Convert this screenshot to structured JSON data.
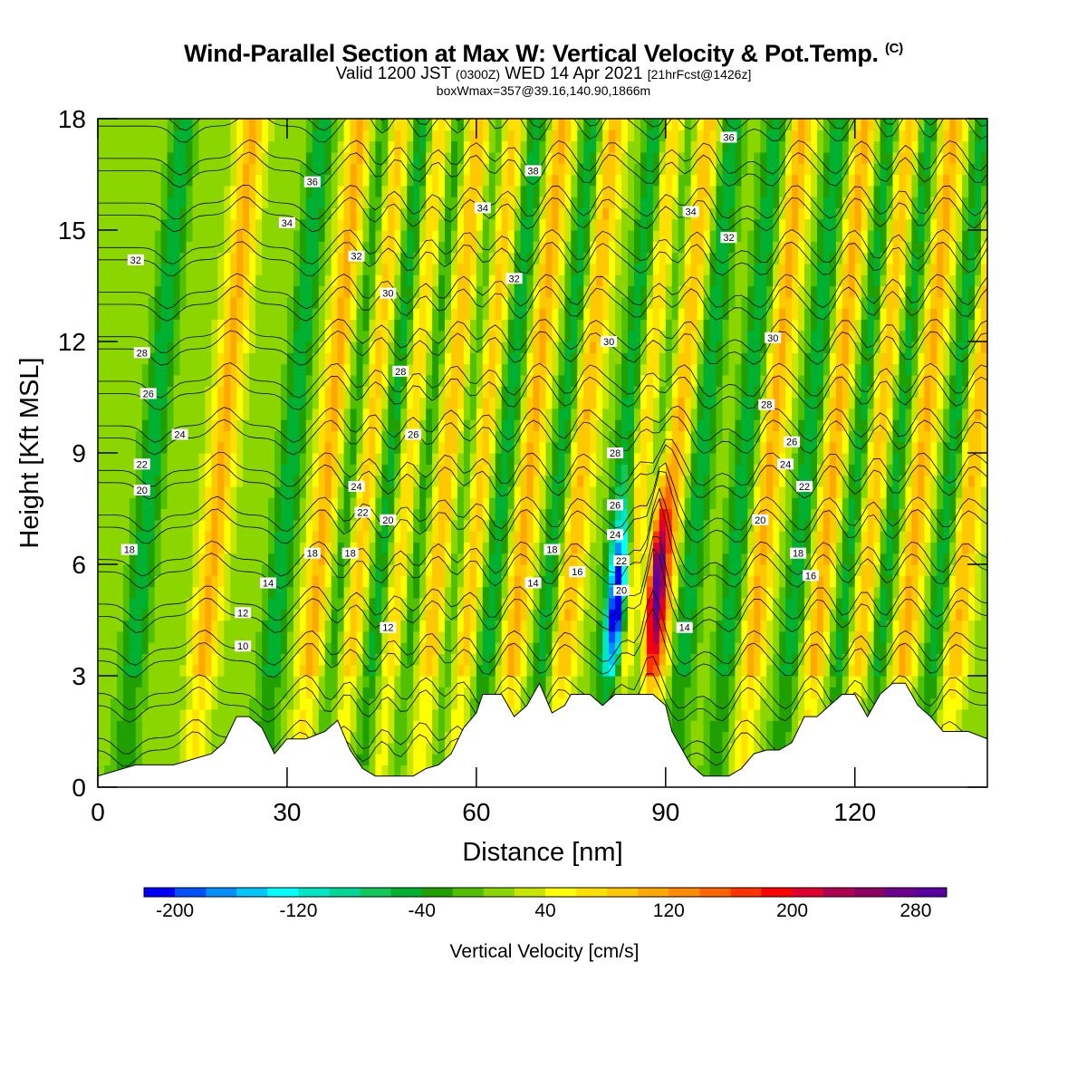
{
  "header": {
    "title": "Wind-Parallel Section at Max W: Vertical Velocity & Pot.Temp.",
    "title_tag": "(C)",
    "valid_pre": "Valid 1200 JST",
    "valid_utc": "(0300Z)",
    "valid_post": "WED 14 Apr 2021",
    "forecast": "[21hrFcst@1426z]",
    "box": "boxWmax=357@39.16,140.90,1866m"
  },
  "chart_data": {
    "type": "heatmap",
    "xlabel": "Distance [nm]",
    "ylabel": "Height [Kft MSL]",
    "xlim": [
      0,
      141
    ],
    "ylim": [
      0,
      18
    ],
    "x_ticks": [
      0,
      30,
      60,
      90,
      120
    ],
    "y_ticks": [
      0,
      3,
      6,
      9,
      12,
      15,
      18
    ],
    "colorbar": {
      "label": "Vertical Velocity [cm/s]",
      "range": [
        -220,
        300
      ],
      "tick_values": [
        -200,
        -120,
        -40,
        40,
        120,
        200,
        280
      ],
      "colors": [
        "#0000ff",
        "#0050ff",
        "#0090ff",
        "#00c8ff",
        "#00ffff",
        "#00e6c8",
        "#00d696",
        "#12c85a",
        "#00b030",
        "#20a000",
        "#50c000",
        "#8cd600",
        "#c8e600",
        "#ffff00",
        "#ffe000",
        "#ffc800",
        "#ffa800",
        "#ff8c00",
        "#ff6400",
        "#ff3200",
        "#ff0000",
        "#e00030",
        "#b00050",
        "#8c0064",
        "#6e0090",
        "#5a00a0"
      ]
    },
    "updraft_axes_x": [
      17,
      34,
      40,
      47,
      53,
      58,
      66,
      74,
      84,
      89,
      104,
      114,
      121,
      128,
      136
    ],
    "downdraft_axes_x": [
      6,
      28,
      38,
      44,
      49,
      56,
      62,
      71,
      81,
      86,
      93,
      100,
      110,
      118,
      124,
      133
    ],
    "max_updraft": {
      "x": 88.5,
      "height_kft": 5.5,
      "w_cms": 290
    },
    "max_downdraft": {
      "x": 82.5,
      "height_kft": 5,
      "w_cms": -200
    },
    "terrain": {
      "x": [
        0,
        6,
        12,
        18,
        20,
        22,
        24,
        26,
        28,
        30,
        33,
        36,
        38,
        40,
        42,
        44,
        46,
        48,
        50,
        52,
        54,
        56,
        58,
        60,
        61,
        62,
        64,
        66,
        68,
        70,
        72,
        74,
        75,
        76,
        78,
        80,
        82,
        84,
        86,
        88,
        90,
        91,
        92,
        94,
        96,
        98,
        100,
        102,
        104,
        106,
        108,
        110,
        112,
        114,
        116,
        118,
        120,
        122,
        124,
        126,
        128,
        130,
        132,
        134,
        136,
        138,
        141
      ],
      "height_kft": [
        0.3,
        0.6,
        0.6,
        0.9,
        1.2,
        1.9,
        1.9,
        1.6,
        0.9,
        1.3,
        1.3,
        1.5,
        1.8,
        1.0,
        0.5,
        0.3,
        0.3,
        0.3,
        0.3,
        0.5,
        0.6,
        0.9,
        1.6,
        2.0,
        2.5,
        2.5,
        2.5,
        1.9,
        2.2,
        2.8,
        2.0,
        2.2,
        2.5,
        2.5,
        2.5,
        2.2,
        2.5,
        2.5,
        2.5,
        2.5,
        2.2,
        1.5,
        1.2,
        0.6,
        0.3,
        0.3,
        0.3,
        0.5,
        0.9,
        1.0,
        1.0,
        1.2,
        1.9,
        1.9,
        2.2,
        2.5,
        2.5,
        1.9,
        2.5,
        2.8,
        2.8,
        2.2,
        1.9,
        1.5,
        1.5,
        1.5,
        1.3
      ]
    },
    "theta_contours": {
      "units": "C",
      "levels": [
        6,
        8,
        10,
        12,
        14,
        16,
        18,
        20,
        22,
        24,
        26,
        28,
        30,
        32,
        34,
        36,
        38
      ],
      "labels": [
        {
          "text": "36",
          "x": 34,
          "y": 16.3
        },
        {
          "text": "36",
          "x": 100,
          "y": 17.5
        },
        {
          "text": "38",
          "x": 69,
          "y": 16.6
        },
        {
          "text": "34",
          "x": 30,
          "y": 15.2
        },
        {
          "text": "34",
          "x": 61,
          "y": 15.6
        },
        {
          "text": "34",
          "x": 94,
          "y": 15.5
        },
        {
          "text": "32",
          "x": 6,
          "y": 14.2
        },
        {
          "text": "32",
          "x": 41,
          "y": 14.3
        },
        {
          "text": "32",
          "x": 66,
          "y": 13.7
        },
        {
          "text": "32",
          "x": 100,
          "y": 14.8
        },
        {
          "text": "30",
          "x": 46,
          "y": 13.3
        },
        {
          "text": "30",
          "x": 81,
          "y": 12.0
        },
        {
          "text": "30",
          "x": 107,
          "y": 12.1
        },
        {
          "text": "28",
          "x": 7,
          "y": 11.7
        },
        {
          "text": "28",
          "x": 48,
          "y": 11.2
        },
        {
          "text": "28",
          "x": 106,
          "y": 10.3
        },
        {
          "text": "28",
          "x": 82,
          "y": 9.0
        },
        {
          "text": "26",
          "x": 8,
          "y": 10.6
        },
        {
          "text": "26",
          "x": 50,
          "y": 9.5
        },
        {
          "text": "26",
          "x": 110,
          "y": 9.3
        },
        {
          "text": "26",
          "x": 82,
          "y": 7.6
        },
        {
          "text": "24",
          "x": 13,
          "y": 9.5
        },
        {
          "text": "24",
          "x": 41,
          "y": 8.1
        },
        {
          "text": "24",
          "x": 109,
          "y": 8.7
        },
        {
          "text": "24",
          "x": 82,
          "y": 6.8
        },
        {
          "text": "22",
          "x": 7,
          "y": 8.7
        },
        {
          "text": "22",
          "x": 42,
          "y": 7.4
        },
        {
          "text": "22",
          "x": 112,
          "y": 8.1
        },
        {
          "text": "22",
          "x": 83,
          "y": 6.1
        },
        {
          "text": "20",
          "x": 7,
          "y": 8.0
        },
        {
          "text": "20",
          "x": 46,
          "y": 7.2
        },
        {
          "text": "20",
          "x": 105,
          "y": 7.2
        },
        {
          "text": "20",
          "x": 83,
          "y": 5.3
        },
        {
          "text": "18",
          "x": 5,
          "y": 6.4
        },
        {
          "text": "18",
          "x": 34,
          "y": 6.3
        },
        {
          "text": "18",
          "x": 40,
          "y": 6.3
        },
        {
          "text": "18",
          "x": 72,
          "y": 6.4
        },
        {
          "text": "18",
          "x": 111,
          "y": 6.3
        },
        {
          "text": "16",
          "x": 76,
          "y": 5.8
        },
        {
          "text": "16",
          "x": 113,
          "y": 5.7
        },
        {
          "text": "14",
          "x": 27,
          "y": 5.5
        },
        {
          "text": "14",
          "x": 69,
          "y": 5.5
        },
        {
          "text": "14",
          "x": 93,
          "y": 4.3
        },
        {
          "text": "12",
          "x": 23,
          "y": 4.7
        },
        {
          "text": "12",
          "x": 46,
          "y": 4.3
        },
        {
          "text": "10",
          "x": 23,
          "y": 3.8
        }
      ]
    }
  }
}
